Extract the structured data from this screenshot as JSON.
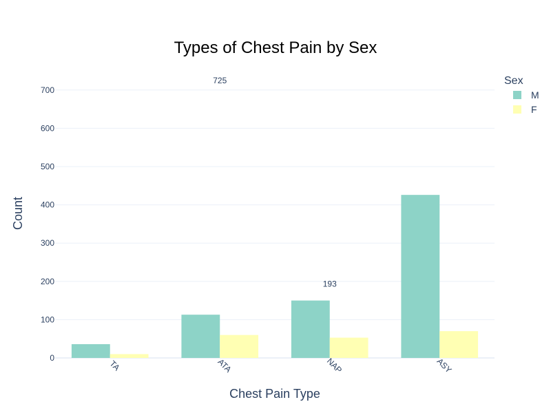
{
  "chart_data": {
    "type": "bar",
    "title": "Types of Chest Pain by Sex",
    "xlabel": "Chest Pain Type",
    "ylabel": "Count",
    "categories": [
      "TA",
      "ATA",
      "NAP",
      "ASY"
    ],
    "ylim": [
      0,
      750
    ],
    "yticks": [
      0,
      100,
      200,
      300,
      400,
      500,
      600,
      700
    ],
    "grid": true,
    "legend": {
      "title": "Sex",
      "position": "top-right"
    },
    "series": [
      {
        "name": "M",
        "color": "#8dd3c7",
        "values": [
          36,
          113,
          150,
          426
        ]
      },
      {
        "name": "F",
        "color": "#ffffb3",
        "values": [
          10,
          60,
          53,
          70
        ]
      }
    ],
    "annotations": [
      {
        "text": "725",
        "category": "ATA",
        "y": 725
      },
      {
        "text": "193",
        "category": "NAP",
        "y": 193
      }
    ]
  }
}
